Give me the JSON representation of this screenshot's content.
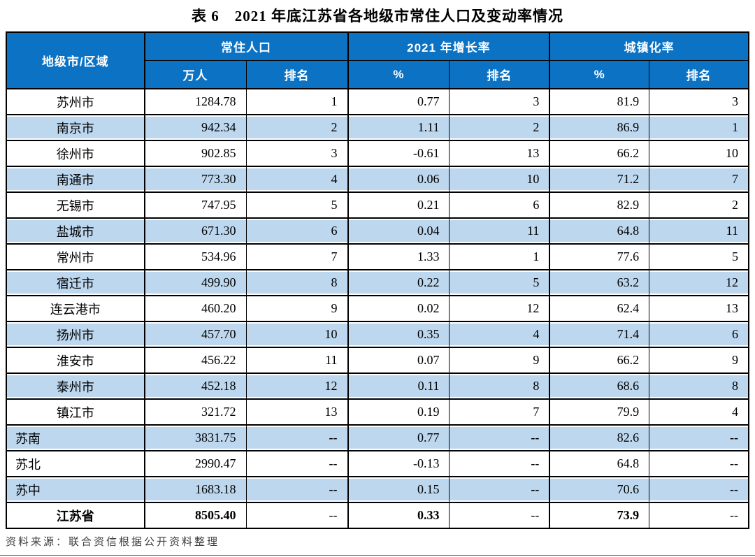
{
  "title": "表 6　2021 年底江苏省各地级市常住人口及变动率情况",
  "colors": {
    "header_bg": "#0B72C4",
    "stripe_bg": "#BDD7EE",
    "border": "#000000",
    "header_text": "#FFFFFF"
  },
  "table": {
    "corner_header": "地级市/区域",
    "groups": [
      {
        "label": "常住人口",
        "cols": [
          "万人",
          "排名"
        ]
      },
      {
        "label": "2021 年增长率",
        "cols": [
          "%",
          "排名"
        ]
      },
      {
        "label": "城镇化率",
        "cols": [
          "%",
          "排名"
        ]
      }
    ],
    "rows": [
      {
        "name": "苏州市",
        "name_align": "center",
        "bold": false,
        "cells": [
          "1284.78",
          "1",
          "0.77",
          "3",
          "81.9",
          "3"
        ]
      },
      {
        "name": "南京市",
        "name_align": "center",
        "bold": false,
        "cells": [
          "942.34",
          "2",
          "1.11",
          "2",
          "86.9",
          "1"
        ]
      },
      {
        "name": "徐州市",
        "name_align": "center",
        "bold": false,
        "cells": [
          "902.85",
          "3",
          "-0.61",
          "13",
          "66.2",
          "10"
        ]
      },
      {
        "name": "南通市",
        "name_align": "center",
        "bold": false,
        "cells": [
          "773.30",
          "4",
          "0.06",
          "10",
          "71.2",
          "7"
        ]
      },
      {
        "name": "无锡市",
        "name_align": "center",
        "bold": false,
        "cells": [
          "747.95",
          "5",
          "0.21",
          "6",
          "82.9",
          "2"
        ]
      },
      {
        "name": "盐城市",
        "name_align": "center",
        "bold": false,
        "cells": [
          "671.30",
          "6",
          "0.04",
          "11",
          "64.8",
          "11"
        ]
      },
      {
        "name": "常州市",
        "name_align": "center",
        "bold": false,
        "cells": [
          "534.96",
          "7",
          "1.33",
          "1",
          "77.6",
          "5"
        ]
      },
      {
        "name": "宿迁市",
        "name_align": "center",
        "bold": false,
        "cells": [
          "499.90",
          "8",
          "0.22",
          "5",
          "63.2",
          "12"
        ]
      },
      {
        "name": "连云港市",
        "name_align": "center",
        "bold": false,
        "cells": [
          "460.20",
          "9",
          "0.02",
          "12",
          "62.4",
          "13"
        ]
      },
      {
        "name": "扬州市",
        "name_align": "center",
        "bold": false,
        "cells": [
          "457.70",
          "10",
          "0.35",
          "4",
          "71.4",
          "6"
        ]
      },
      {
        "name": "淮安市",
        "name_align": "center",
        "bold": false,
        "cells": [
          "456.22",
          "11",
          "0.07",
          "9",
          "66.2",
          "9"
        ]
      },
      {
        "name": "泰州市",
        "name_align": "center",
        "bold": false,
        "cells": [
          "452.18",
          "12",
          "0.11",
          "8",
          "68.6",
          "8"
        ]
      },
      {
        "name": "镇江市",
        "name_align": "center",
        "bold": false,
        "cells": [
          "321.72",
          "13",
          "0.19",
          "7",
          "79.9",
          "4"
        ]
      },
      {
        "name": "苏南",
        "name_align": "left",
        "bold": false,
        "cells": [
          "3831.75",
          "--",
          "0.77",
          "--",
          "82.6",
          "--"
        ]
      },
      {
        "name": "苏北",
        "name_align": "left",
        "bold": false,
        "cells": [
          "2990.47",
          "--",
          "-0.13",
          "--",
          "64.8",
          "--"
        ]
      },
      {
        "name": "苏中",
        "name_align": "left",
        "bold": false,
        "cells": [
          "1683.18",
          "--",
          "0.15",
          "--",
          "70.6",
          "--"
        ]
      },
      {
        "name": "江苏省",
        "name_align": "center",
        "bold": true,
        "cells": [
          "8505.40",
          "--",
          "0.33",
          "--",
          "73.9",
          "--"
        ]
      }
    ]
  },
  "footer": {
    "source": "资料来源：联合资信根据公开资料整理"
  }
}
